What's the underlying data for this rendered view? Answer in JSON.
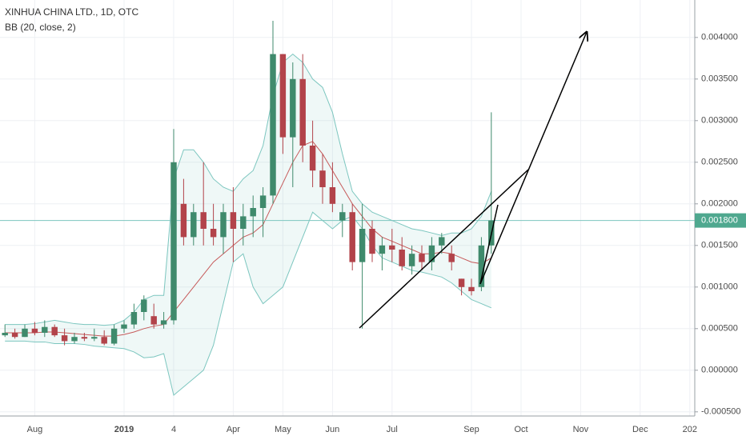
{
  "chart_data": {
    "type": "candlestick",
    "title": "XINHUA CHINA LTD., 1D, OTC",
    "indicator": "BB (20, close, 2)",
    "categories": [
      null,
      null,
      null,
      "Aug",
      null,
      null,
      null,
      null,
      null,
      null,
      null,
      null,
      "2019",
      null,
      null,
      null,
      null,
      "4",
      null,
      null,
      null,
      null,
      null,
      "Apr",
      null,
      null,
      null,
      null,
      "May",
      null,
      null,
      null,
      null,
      "Jun",
      null,
      null,
      null,
      null,
      null,
      "Jul",
      null,
      null,
      null,
      null,
      null,
      null,
      null,
      "Sep",
      null,
      null,
      null,
      null,
      "Oct",
      null,
      null,
      null,
      null,
      null,
      "Nov",
      null,
      null,
      null,
      null,
      null,
      "Dec",
      null,
      null,
      null,
      null,
      "202"
    ],
    "open": [
      0.00042,
      0.00045,
      0.0004,
      0.0005,
      0.00045,
      0.00052,
      0.00042,
      0.00035,
      0.0004,
      0.00038,
      0.0004,
      0.00032,
      0.0005,
      0.00055,
      0.0007,
      0.00065,
      0.00055,
      0.0006,
      0.002,
      0.0016,
      0.0019,
      0.0017,
      0.0016,
      0.0019,
      0.0017,
      0.00185,
      0.00195,
      0.0021,
      0.0038,
      0.0028,
      0.0035,
      0.0027,
      0.0024,
      0.0022,
      0.0018,
      0.0019,
      0.0013,
      0.0017,
      0.0014,
      0.0015,
      0.00145,
      0.00125,
      0.0014,
      0.0013,
      0.0015,
      0.0014,
      0.0011,
      0.001,
      0.001,
      0.0015,
      null,
      null,
      null,
      null,
      null,
      null,
      null,
      null,
      null,
      null,
      null,
      null,
      null,
      null,
      null,
      null,
      null,
      null,
      null,
      null
    ],
    "high": [
      0.00055,
      0.0005,
      0.00055,
      0.00058,
      0.0006,
      0.00055,
      0.0005,
      0.00045,
      0.00045,
      0.0005,
      0.00048,
      0.00055,
      0.0006,
      0.0008,
      0.0009,
      0.0008,
      0.0007,
      0.0029,
      0.0023,
      0.002,
      0.0025,
      0.002,
      0.002,
      0.0022,
      0.002,
      0.0021,
      0.0022,
      0.0042,
      0.0038,
      0.0037,
      0.0038,
      0.003,
      0.0026,
      0.0025,
      0.002,
      0.002,
      0.002,
      0.0018,
      0.0016,
      0.0017,
      0.0016,
      0.0015,
      0.0015,
      0.0016,
      0.00165,
      0.0015,
      0.0011,
      0.0011,
      0.0016,
      0.0031,
      null,
      null,
      null,
      null,
      null,
      null,
      null,
      null,
      null,
      null,
      null,
      null,
      null,
      null,
      null,
      null,
      null,
      null,
      null,
      null
    ],
    "low": [
      0.0004,
      0.00038,
      0.0004,
      0.00042,
      0.0004,
      0.0004,
      0.0003,
      0.00032,
      0.00035,
      0.00035,
      0.0003,
      0.0003,
      0.00045,
      0.0005,
      0.0006,
      0.0005,
      0.0005,
      0.00055,
      0.0015,
      0.0015,
      0.0015,
      0.0015,
      0.0014,
      0.0013,
      0.0015,
      0.0016,
      0.0016,
      0.002,
      0.0026,
      0.0022,
      0.0025,
      0.0022,
      0.002,
      0.0019,
      0.0016,
      0.0012,
      0.0005,
      0.0013,
      0.0012,
      0.0013,
      0.0012,
      0.00115,
      0.0012,
      0.0012,
      0.0014,
      0.0012,
      0.0009,
      0.0009,
      0.00095,
      0.0014,
      null,
      null,
      null,
      null,
      null,
      null,
      null,
      null,
      null,
      null,
      null,
      null,
      null,
      null,
      null,
      null,
      null,
      null,
      null,
      null
    ],
    "close": [
      0.00045,
      0.0004,
      0.0005,
      0.00045,
      0.00052,
      0.00042,
      0.00035,
      0.0004,
      0.00038,
      0.0004,
      0.00032,
      0.0005,
      0.00055,
      0.0007,
      0.00085,
      0.00055,
      0.0006,
      0.0025,
      0.0016,
      0.0019,
      0.0017,
      0.0016,
      0.0019,
      0.0017,
      0.00185,
      0.00195,
      0.0021,
      0.0038,
      0.0028,
      0.0035,
      0.0027,
      0.0024,
      0.0022,
      0.002,
      0.0019,
      0.0013,
      0.0017,
      0.0014,
      0.0015,
      0.00145,
      0.00125,
      0.0014,
      0.0013,
      0.0015,
      0.0016,
      0.0013,
      0.001,
      0.00095,
      0.0015,
      0.0018,
      null,
      null,
      null,
      null,
      null,
      null,
      null,
      null,
      null,
      null,
      null,
      null,
      null,
      null,
      null,
      null,
      null,
      null,
      null,
      null
    ],
    "bb_upper": [
      0.00055,
      0.00055,
      0.00055,
      0.00056,
      0.00058,
      0.0006,
      0.00058,
      0.00056,
      0.00055,
      0.00055,
      0.00054,
      0.00055,
      0.0006,
      0.0007,
      0.00085,
      0.0009,
      0.0009,
      0.0023,
      0.00265,
      0.00265,
      0.0025,
      0.0023,
      0.0022,
      0.00215,
      0.0023,
      0.0024,
      0.0027,
      0.0033,
      0.0037,
      0.0038,
      0.0037,
      0.0035,
      0.0034,
      0.0031,
      0.0026,
      0.00215,
      0.002,
      0.0019,
      0.00185,
      0.0018,
      0.00175,
      0.0017,
      0.00168,
      0.00165,
      0.00162,
      0.00165,
      0.00165,
      0.0017,
      0.00185,
      0.00215,
      null,
      null,
      null,
      null,
      null,
      null,
      null,
      null,
      null,
      null,
      null,
      null,
      null,
      null,
      null,
      null,
      null,
      null,
      null,
      null
    ],
    "bb_basis": [
      0.00045,
      0.00045,
      0.00045,
      0.00045,
      0.00046,
      0.00046,
      0.00045,
      0.00044,
      0.00043,
      0.00042,
      0.00041,
      0.00041,
      0.00043,
      0.00046,
      0.0005,
      0.00053,
      0.00055,
      0.0007,
      0.00085,
      0.001,
      0.00115,
      0.0013,
      0.0014,
      0.0015,
      0.0016,
      0.00165,
      0.00175,
      0.002,
      0.00225,
      0.0025,
      0.0027,
      0.00275,
      0.0026,
      0.0024,
      0.0022,
      0.002,
      0.00185,
      0.0017,
      0.0016,
      0.00155,
      0.0015,
      0.00145,
      0.0014,
      0.0014,
      0.00142,
      0.0014,
      0.00135,
      0.0013,
      0.00128,
      0.00135,
      null,
      null,
      null,
      null,
      null,
      null,
      null,
      null,
      null,
      null,
      null,
      null,
      null,
      null,
      null,
      null,
      null,
      null,
      null,
      null
    ],
    "bb_lower": [
      0.00035,
      0.00035,
      0.00035,
      0.00034,
      0.00034,
      0.00032,
      0.00032,
      0.00032,
      0.00031,
      0.00029,
      0.00028,
      0.00027,
      0.00026,
      0.00022,
      0.00015,
      0.00016,
      0.0002,
      -0.0003,
      -0.0002,
      -0.0001,
      0,
      0.0003,
      0.0008,
      0.0013,
      0.0014,
      0.001,
      0.0008,
      0.0009,
      0.001,
      0.0013,
      0.0016,
      0.0019,
      0.0018,
      0.0017,
      0.0018,
      0.00185,
      0.0017,
      0.0015,
      0.00135,
      0.0013,
      0.00125,
      0.0012,
      0.00118,
      0.00115,
      0.00112,
      0.00105,
      0.00095,
      0.00085,
      0.0008,
      0.00075,
      null,
      null,
      null,
      null,
      null,
      null,
      null,
      null,
      null,
      null,
      null,
      null,
      null,
      null,
      null,
      null,
      null,
      null,
      null,
      null
    ],
    "up_color": "#3f8a6c",
    "down_color": "#b2434a",
    "band_color": "#7cc6bf",
    "basis_color": "#c65a5a",
    "band_fill": "rgba(124,198,191,0.12)",
    "last_price": {
      "value": 0.0018,
      "label": "0.001800"
    },
    "last_price_color": "#4fa88f",
    "ylim": [
      -0.00055,
      0.00445
    ],
    "yticks": [
      {
        "value": -0.0005,
        "label": "-0.000500"
      },
      {
        "value": 0,
        "label": "0.000000"
      },
      {
        "value": 0.0005,
        "label": "0.000500"
      },
      {
        "value": 0.001,
        "label": "0.001000"
      },
      {
        "value": 0.0015,
        "label": "0.001500"
      },
      {
        "value": 0.002,
        "label": "0.002000"
      },
      {
        "value": 0.0025,
        "label": "0.002500"
      },
      {
        "value": 0.003,
        "label": "0.003000"
      },
      {
        "value": 0.0035,
        "label": "0.003500"
      },
      {
        "value": 0.004,
        "label": "0.004000"
      }
    ],
    "grid": true
  }
}
